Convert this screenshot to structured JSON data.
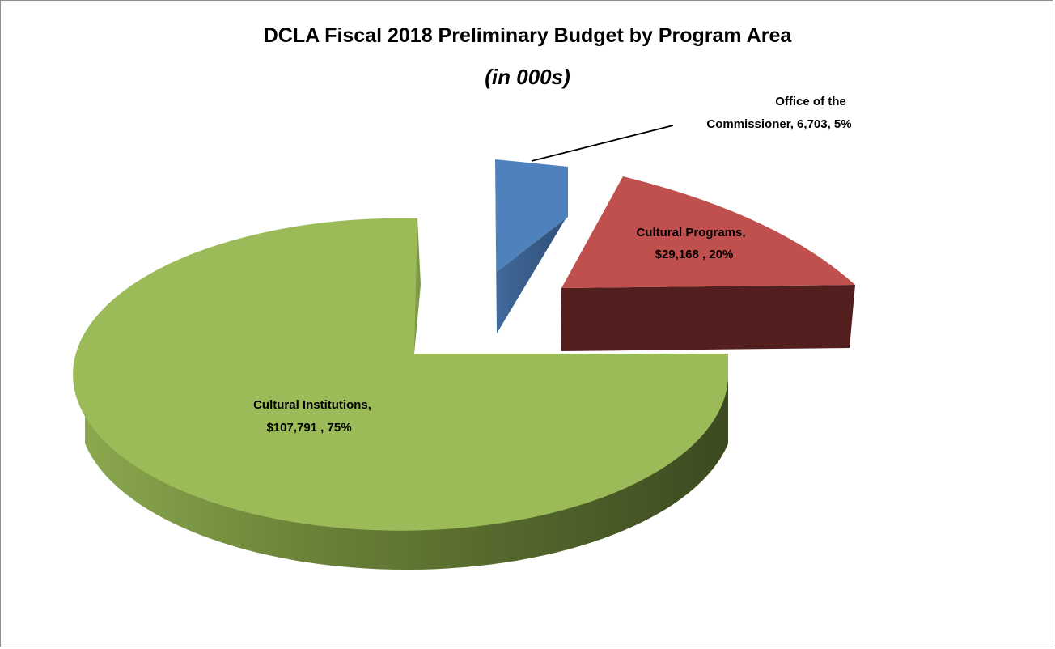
{
  "chart_data": {
    "type": "pie",
    "title": "DCLA Fiscal 2018 Preliminary Budget by Program Area",
    "subtitle": "(in 000s)",
    "three_d": true,
    "exploded": true,
    "slices": [
      {
        "label": "Office of the Commissioner",
        "value": 6703,
        "value_text": "6,703",
        "percent": 5,
        "label_lines": [
          "Office of the",
          "Commissioner, 6,703, 5%"
        ],
        "color_top": "#4f81bd",
        "color_side": "#3b5f8c"
      },
      {
        "label": "Cultural Programs",
        "value": 29168,
        "value_text": "$29,168",
        "percent": 20,
        "label_lines": [
          "Cultural Programs,",
          "$29,168 , 20%"
        ],
        "color_top": "#c0504d",
        "color_side": "#521e1e"
      },
      {
        "label": "Cultural Institutions",
        "value": 107791,
        "value_text": "$107,791",
        "percent": 75,
        "label_lines": [
          "Cultural Institutions,",
          "$107,791 , 75%"
        ],
        "color_top": "#9bbb59",
        "color_side": "#5c7232"
      }
    ]
  }
}
